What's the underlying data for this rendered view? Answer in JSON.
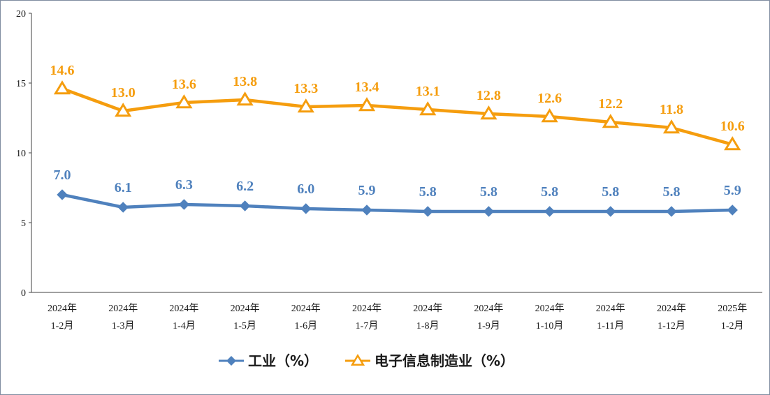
{
  "chart_data": {
    "type": "line",
    "title": "",
    "xlabel": "",
    "ylabel": "",
    "ylim": [
      0,
      20
    ],
    "yticks": [
      "0",
      "5",
      "10",
      "15",
      "20"
    ],
    "grid": false,
    "legend_position": "bottom",
    "categories": [
      [
        "2024年",
        "1-2月"
      ],
      [
        "2024年",
        "1-3月"
      ],
      [
        "2024年",
        "1-4月"
      ],
      [
        "2024年",
        "1-5月"
      ],
      [
        "2024年",
        "1-6月"
      ],
      [
        "2024年",
        "1-7月"
      ],
      [
        "2024年",
        "1-8月"
      ],
      [
        "2024年",
        "1-9月"
      ],
      [
        "2024年",
        "1-10月"
      ],
      [
        "2024年",
        "1-11月"
      ],
      [
        "2024年",
        "1-12月"
      ],
      [
        "2025年",
        "1-2月"
      ]
    ],
    "series": [
      {
        "name": "工业（%）",
        "color": "#4f81bd",
        "marker": "diamond",
        "values": [
          7.0,
          6.1,
          6.3,
          6.2,
          6.0,
          5.9,
          5.8,
          5.8,
          5.8,
          5.8,
          5.8,
          5.9
        ],
        "labels": [
          "7.0",
          "6.1",
          "6.3",
          "6.2",
          "6.0",
          "5.9",
          "5.8",
          "5.8",
          "5.8",
          "5.8",
          "5.8",
          "5.9"
        ]
      },
      {
        "name": "电子信息制造业（%）",
        "color": "#f59d0e",
        "marker": "triangle",
        "values": [
          14.6,
          13.0,
          13.6,
          13.8,
          13.3,
          13.4,
          13.1,
          12.8,
          12.6,
          12.2,
          11.8,
          10.6
        ],
        "labels": [
          "14.6",
          "13.0",
          "13.6",
          "13.8",
          "13.3",
          "13.4",
          "13.1",
          "12.8",
          "12.6",
          "12.2",
          "11.8",
          "10.6"
        ]
      }
    ]
  }
}
